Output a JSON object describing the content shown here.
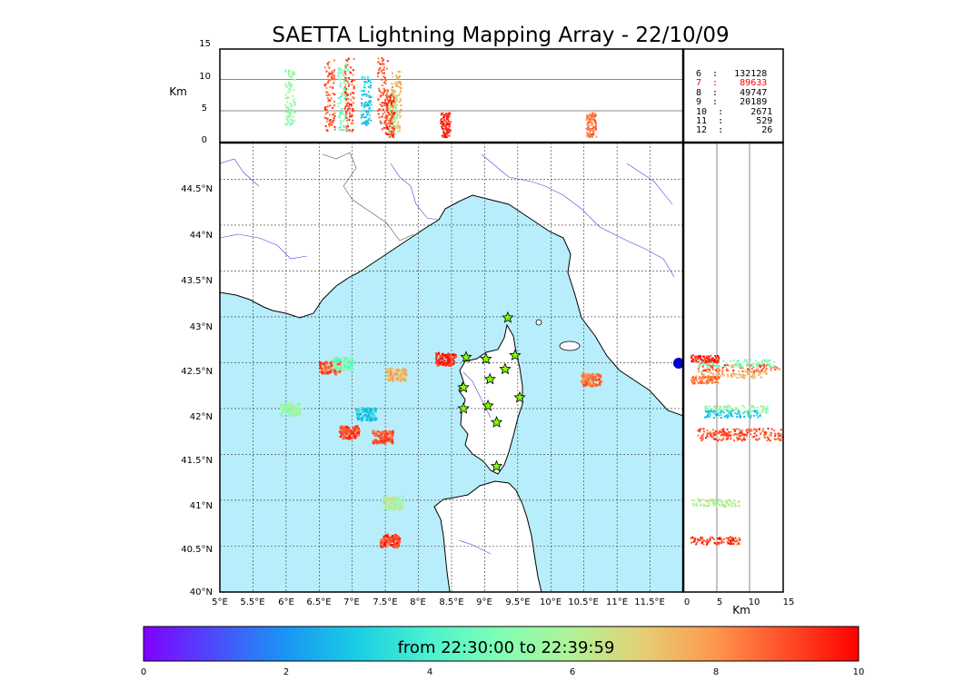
{
  "title": "SAETTA Lightning Mapping Array - 22/10/09",
  "top_panel": {
    "ylabel": "Km",
    "yticks": [
      "0",
      "5",
      "10",
      "15"
    ],
    "legend": [
      {
        "text": "6  :   132128",
        "color": "#000000"
      },
      {
        "text": "7  :    89633",
        "color": "#ff0000"
      },
      {
        "text": "8  :    49747",
        "color": "#000000"
      },
      {
        "text": "9  :    20189",
        "color": "#000000"
      },
      {
        "text": "10  :     2671",
        "color": "#000000"
      },
      {
        "text": "11  :      529",
        "color": "#000000"
      },
      {
        "text": "12  :       26",
        "color": "#000000"
      }
    ]
  },
  "map": {
    "lon_ticks": [
      "5°E",
      "5.5°E",
      "6°E",
      "6.5°E",
      "7°E",
      "7.5°E",
      "8°E",
      "8.5°E",
      "9°E",
      "9.5°E",
      "10°E",
      "10.5°E",
      "11°E",
      "11.5°E"
    ],
    "lat_ticks": [
      "44.5°N",
      "44°N",
      "43.5°N",
      "43°N",
      "42.5°N",
      "42°N",
      "41.5°N",
      "41°N",
      "40.5°N",
      "40°N"
    ],
    "sea_color": "#b8eefb",
    "land_color": "#ffffff",
    "station_color": "#7fff00"
  },
  "side_panel": {
    "xlabel": "Km",
    "xticks": [
      "0",
      "5",
      "10",
      "15"
    ]
  },
  "colorbar": {
    "label": "from 22:30:00 to 22:39:59",
    "ticks": [
      "0",
      "2",
      "4",
      "6",
      "8",
      "10"
    ],
    "colormap": "rainbow"
  },
  "chart_data": {
    "type": "scatter",
    "title": "SAETTA Lightning Mapping Array - 22/10/09",
    "x_range": [
      5.0,
      12.0
    ],
    "y_range": [
      40.0,
      44.9
    ],
    "altitude_range_km": [
      0,
      15
    ],
    "time_range_minutes": [
      0,
      10
    ],
    "station_count_table": [
      {
        "stations": 6,
        "sources": 132128
      },
      {
        "stations": 7,
        "sources": 89633
      },
      {
        "stations": 8,
        "sources": 49747
      },
      {
        "stations": 9,
        "sources": 20189
      },
      {
        "stations": 10,
        "sources": 2671
      },
      {
        "stations": 11,
        "sources": 529
      },
      {
        "stations": 12,
        "sources": 26
      }
    ],
    "lightning_clusters": [
      {
        "lon": 6.05,
        "lat": 42.0,
        "t": 5.5,
        "alt_min": 3,
        "alt_max": 12
      },
      {
        "lon": 6.65,
        "lat": 42.45,
        "t": 8.8,
        "alt_min": 2,
        "alt_max": 14
      },
      {
        "lon": 6.85,
        "lat": 42.5,
        "t": 4.8,
        "alt_min": 2,
        "alt_max": 13
      },
      {
        "lon": 6.95,
        "lat": 41.75,
        "t": 9.0,
        "alt_min": 2,
        "alt_max": 14
      },
      {
        "lon": 7.2,
        "lat": 41.95,
        "t": 3.0,
        "alt_min": 3,
        "alt_max": 11
      },
      {
        "lon": 7.45,
        "lat": 41.7,
        "t": 9.0,
        "alt_min": 2,
        "alt_max": 14
      },
      {
        "lon": 7.65,
        "lat": 42.38,
        "t": 7.5,
        "alt_min": 2,
        "alt_max": 12
      },
      {
        "lon": 7.6,
        "lat": 40.98,
        "t": 6.0,
        "alt_min": 1,
        "alt_max": 8
      },
      {
        "lon": 7.55,
        "lat": 40.57,
        "t": 9.3,
        "alt_min": 1,
        "alt_max": 8
      },
      {
        "lon": 8.4,
        "lat": 42.55,
        "t": 9.5,
        "alt_min": 1,
        "alt_max": 5
      },
      {
        "lon": 10.6,
        "lat": 42.32,
        "t": 8.5,
        "alt_min": 1,
        "alt_max": 5
      }
    ],
    "stations": [
      {
        "lon": 9.35,
        "lat": 42.99
      },
      {
        "lon": 8.72,
        "lat": 42.56
      },
      {
        "lon": 9.02,
        "lat": 42.54
      },
      {
        "lon": 9.46,
        "lat": 42.58
      },
      {
        "lon": 9.31,
        "lat": 42.43
      },
      {
        "lon": 9.08,
        "lat": 42.32
      },
      {
        "lon": 8.68,
        "lat": 42.23
      },
      {
        "lon": 9.53,
        "lat": 42.12
      },
      {
        "lon": 8.68,
        "lat": 42.0
      },
      {
        "lon": 9.05,
        "lat": 42.03
      },
      {
        "lon": 9.18,
        "lat": 41.85
      },
      {
        "lon": 9.18,
        "lat": 41.37
      }
    ]
  }
}
